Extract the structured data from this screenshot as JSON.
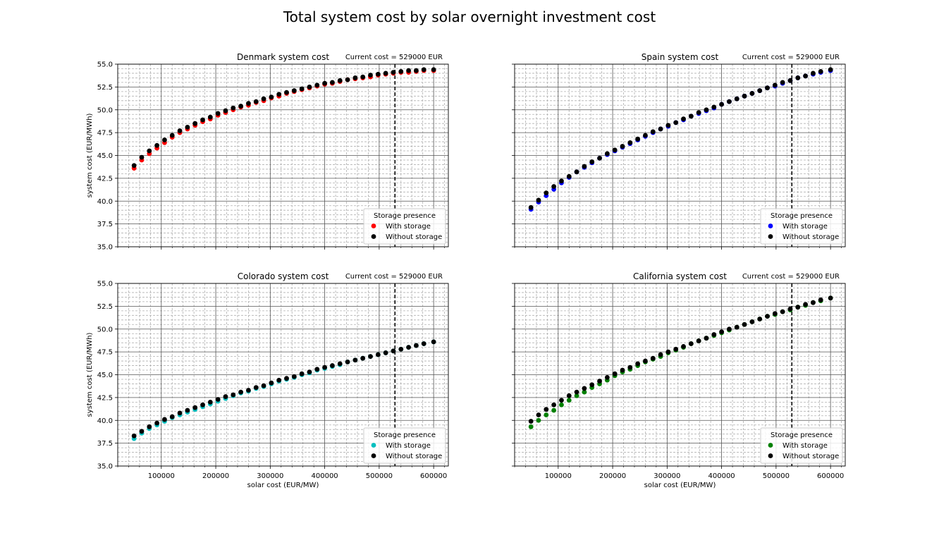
{
  "figure": {
    "suptitle": "Total system cost by solar overnight investment cost"
  },
  "chart_data": [
    {
      "type": "scatter",
      "title": "Denmark system cost",
      "annotation": "Current cost = 529000 EUR",
      "vline_x": 529000,
      "xlabel": "",
      "ylabel": "system cost (EUR/MWh)",
      "xlim": [
        20000,
        627000
      ],
      "ylim": [
        35.0,
        55.0
      ],
      "x_ticks": [
        100000,
        200000,
        300000,
        400000,
        500000,
        600000
      ],
      "x_tick_labels": [
        "",
        "",
        "",
        "",
        "",
        ""
      ],
      "y_ticks": [
        35.0,
        37.5,
        40.0,
        42.5,
        45.0,
        47.5,
        50.0,
        52.5,
        55.0
      ],
      "y_tick_labels": [
        "35.0",
        "37.5",
        "40.0",
        "42.5",
        "45.0",
        "47.5",
        "50.0",
        "52.5",
        "55.0"
      ],
      "grid": true,
      "legend_position": "lower-right",
      "legend_title": "Storage presence",
      "x": [
        50000,
        64000,
        78000,
        92000,
        106000,
        120000,
        134000,
        148000,
        162000,
        176000,
        190000,
        204000,
        218000,
        232000,
        246000,
        260000,
        274000,
        288000,
        302000,
        316000,
        330000,
        344000,
        358000,
        372000,
        386000,
        400000,
        414000,
        428000,
        442000,
        456000,
        470000,
        484000,
        498000,
        512000,
        526000,
        540000,
        554000,
        568000,
        582000,
        600000
      ],
      "series": [
        {
          "name": "With storage",
          "color": "#ff0000",
          "values": [
            43.6,
            44.5,
            45.2,
            45.8,
            46.4,
            47.0,
            47.5,
            47.9,
            48.3,
            48.7,
            49.0,
            49.4,
            49.7,
            50.0,
            50.3,
            50.5,
            50.8,
            51.0,
            51.3,
            51.5,
            51.8,
            52.0,
            52.2,
            52.4,
            52.6,
            52.8,
            52.9,
            53.1,
            53.3,
            53.4,
            53.5,
            53.6,
            53.8,
            53.9,
            54.0,
            54.1,
            54.1,
            54.2,
            54.3,
            54.3
          ]
        },
        {
          "name": "Without storage",
          "color": "#000000",
          "values": [
            43.9,
            44.8,
            45.5,
            46.1,
            46.7,
            47.2,
            47.7,
            48.1,
            48.5,
            48.9,
            49.2,
            49.6,
            49.9,
            50.2,
            50.4,
            50.7,
            50.9,
            51.2,
            51.4,
            51.7,
            51.9,
            52.1,
            52.3,
            52.5,
            52.7,
            52.9,
            53.0,
            53.2,
            53.3,
            53.5,
            53.6,
            53.8,
            53.9,
            54.0,
            54.1,
            54.2,
            54.3,
            54.3,
            54.4,
            54.4
          ]
        }
      ]
    },
    {
      "type": "scatter",
      "title": "Spain system cost",
      "annotation": "Current cost = 529000 EUR",
      "vline_x": 529000,
      "xlabel": "",
      "ylabel": "",
      "xlim": [
        20000,
        627000
      ],
      "ylim": [
        35.0,
        55.0
      ],
      "x_ticks": [
        100000,
        200000,
        300000,
        400000,
        500000,
        600000
      ],
      "x_tick_labels": [
        "",
        "",
        "",
        "",
        "",
        ""
      ],
      "y_ticks": [
        35.0,
        37.5,
        40.0,
        42.5,
        45.0,
        47.5,
        50.0,
        52.5,
        55.0
      ],
      "y_tick_labels": [
        "",
        "",
        "",
        "",
        "",
        "",
        "",
        "",
        ""
      ],
      "grid": true,
      "legend_position": "lower-right",
      "legend_title": "Storage presence",
      "x": [
        50000,
        64000,
        78000,
        92000,
        106000,
        120000,
        134000,
        148000,
        162000,
        176000,
        190000,
        204000,
        218000,
        232000,
        246000,
        260000,
        274000,
        288000,
        302000,
        316000,
        330000,
        344000,
        358000,
        372000,
        386000,
        400000,
        414000,
        428000,
        442000,
        456000,
        470000,
        484000,
        498000,
        512000,
        526000,
        540000,
        554000,
        568000,
        582000,
        600000
      ],
      "series": [
        {
          "name": "With storage",
          "color": "#0000ff",
          "values": [
            39.1,
            39.9,
            40.6,
            41.3,
            42.0,
            42.6,
            43.2,
            43.7,
            44.2,
            44.7,
            45.1,
            45.5,
            45.9,
            46.3,
            46.7,
            47.1,
            47.5,
            47.9,
            48.2,
            48.6,
            48.9,
            49.3,
            49.6,
            49.9,
            50.2,
            50.6,
            50.9,
            51.2,
            51.5,
            51.8,
            52.1,
            52.4,
            52.6,
            52.9,
            53.2,
            53.5,
            53.7,
            53.9,
            54.1,
            54.3
          ]
        },
        {
          "name": "Without storage",
          "color": "#000000",
          "values": [
            39.3,
            40.1,
            40.9,
            41.6,
            42.2,
            42.7,
            43.2,
            43.8,
            44.3,
            44.7,
            45.2,
            45.6,
            46.0,
            46.4,
            46.8,
            47.2,
            47.6,
            47.9,
            48.3,
            48.6,
            49.0,
            49.3,
            49.7,
            50.0,
            50.3,
            50.6,
            50.9,
            51.2,
            51.5,
            51.8,
            52.1,
            52.4,
            52.7,
            53.0,
            53.2,
            53.5,
            53.7,
            54.0,
            54.2,
            54.4
          ]
        }
      ]
    },
    {
      "type": "scatter",
      "title": "Colorado system cost",
      "annotation": "Current cost = 529000 EUR",
      "vline_x": 529000,
      "xlabel": "solar cost (EUR/MW)",
      "ylabel": "system cost (EUR/MWh)",
      "xlim": [
        20000,
        627000
      ],
      "ylim": [
        35.0,
        55.0
      ],
      "x_ticks": [
        100000,
        200000,
        300000,
        400000,
        500000,
        600000
      ],
      "x_tick_labels": [
        "100000",
        "200000",
        "300000",
        "400000",
        "500000",
        "600000"
      ],
      "y_ticks": [
        35.0,
        37.5,
        40.0,
        42.5,
        45.0,
        47.5,
        50.0,
        52.5,
        55.0
      ],
      "y_tick_labels": [
        "35.0",
        "37.5",
        "40.0",
        "42.5",
        "45.0",
        "47.5",
        "50.0",
        "52.5",
        "55.0"
      ],
      "grid": true,
      "legend_position": "lower-right",
      "legend_title": "Storage presence",
      "x": [
        50000,
        64000,
        78000,
        92000,
        106000,
        120000,
        134000,
        148000,
        162000,
        176000,
        190000,
        204000,
        218000,
        232000,
        246000,
        260000,
        274000,
        288000,
        302000,
        316000,
        330000,
        344000,
        358000,
        372000,
        386000,
        400000,
        414000,
        428000,
        442000,
        456000,
        470000,
        484000,
        498000,
        512000,
        526000,
        540000,
        554000,
        568000,
        582000,
        600000
      ],
      "series": [
        {
          "name": "With storage",
          "color": "#00bfbf",
          "values": [
            38.0,
            38.6,
            39.1,
            39.5,
            39.9,
            40.3,
            40.6,
            40.9,
            41.2,
            41.5,
            41.8,
            42.1,
            42.4,
            42.7,
            43.0,
            43.2,
            43.5,
            43.7,
            44.0,
            44.3,
            44.5,
            44.7,
            45.0,
            45.2,
            45.5,
            45.7,
            45.9,
            46.1,
            46.4,
            46.6,
            46.8,
            47.0,
            47.2,
            47.4,
            47.6,
            47.8,
            48.0,
            48.2,
            48.4,
            48.6
          ]
        },
        {
          "name": "Without storage",
          "color": "#000000",
          "values": [
            38.3,
            38.8,
            39.3,
            39.7,
            40.1,
            40.4,
            40.8,
            41.1,
            41.4,
            41.7,
            42.0,
            42.3,
            42.6,
            42.8,
            43.1,
            43.3,
            43.6,
            43.8,
            44.1,
            44.4,
            44.6,
            44.8,
            45.1,
            45.3,
            45.6,
            45.8,
            46.0,
            46.2,
            46.4,
            46.6,
            46.8,
            47.0,
            47.2,
            47.4,
            47.6,
            47.8,
            48.0,
            48.2,
            48.4,
            48.6
          ]
        }
      ]
    },
    {
      "type": "scatter",
      "title": "California system cost",
      "annotation": "Current cost = 529000 EUR",
      "vline_x": 529000,
      "xlabel": "solar cost (EUR/MW)",
      "ylabel": "",
      "xlim": [
        20000,
        627000
      ],
      "ylim": [
        35.0,
        55.0
      ],
      "x_ticks": [
        100000,
        200000,
        300000,
        400000,
        500000,
        600000
      ],
      "x_tick_labels": [
        "100000",
        "200000",
        "300000",
        "400000",
        "500000",
        "600000"
      ],
      "y_ticks": [
        35.0,
        37.5,
        40.0,
        42.5,
        45.0,
        47.5,
        50.0,
        52.5,
        55.0
      ],
      "y_tick_labels": [
        "",
        "",
        "",
        "",
        "",
        "",
        "",
        "",
        ""
      ],
      "grid": true,
      "legend_position": "lower-right",
      "legend_title": "Storage presence",
      "x": [
        50000,
        64000,
        78000,
        92000,
        106000,
        120000,
        134000,
        148000,
        162000,
        176000,
        190000,
        204000,
        218000,
        232000,
        246000,
        260000,
        274000,
        288000,
        302000,
        316000,
        330000,
        344000,
        358000,
        372000,
        386000,
        400000,
        414000,
        428000,
        442000,
        456000,
        470000,
        484000,
        498000,
        512000,
        526000,
        540000,
        554000,
        568000,
        582000,
        600000
      ],
      "series": [
        {
          "name": "With storage",
          "color": "#008000",
          "values": [
            39.3,
            40.0,
            40.6,
            41.1,
            41.7,
            42.2,
            42.7,
            43.1,
            43.6,
            44.0,
            44.4,
            44.9,
            45.3,
            45.6,
            46.0,
            46.4,
            46.7,
            47.0,
            47.4,
            47.7,
            48.0,
            48.4,
            48.7,
            49.0,
            49.3,
            49.6,
            49.9,
            50.2,
            50.5,
            50.8,
            51.1,
            51.4,
            51.6,
            51.9,
            52.1,
            52.4,
            52.6,
            52.9,
            53.1,
            53.4
          ]
        },
        {
          "name": "Without storage",
          "color": "#000000",
          "values": [
            39.9,
            40.6,
            41.2,
            41.7,
            42.2,
            42.7,
            43.1,
            43.5,
            43.9,
            44.3,
            44.7,
            45.1,
            45.5,
            45.8,
            46.2,
            46.5,
            46.8,
            47.2,
            47.5,
            47.8,
            48.1,
            48.4,
            48.7,
            49.0,
            49.4,
            49.7,
            50.0,
            50.2,
            50.5,
            50.8,
            51.1,
            51.4,
            51.7,
            51.9,
            52.2,
            52.4,
            52.7,
            52.9,
            53.2,
            53.4
          ]
        }
      ]
    }
  ]
}
